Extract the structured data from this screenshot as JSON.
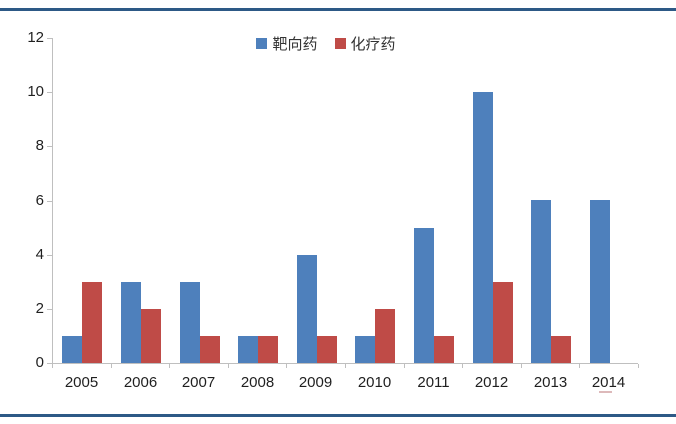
{
  "chart_data": {
    "type": "bar",
    "categories": [
      "2005",
      "2006",
      "2007",
      "2008",
      "2009",
      "2010",
      "2011",
      "2012",
      "2013",
      "2014"
    ],
    "series": [
      {
        "name": "靶向药",
        "color": "#4E80BC",
        "values": [
          1,
          3,
          3,
          1,
          4,
          1,
          5,
          10,
          6,
          6
        ]
      },
      {
        "name": "化疗药",
        "color": "#BF4B47",
        "values": [
          3,
          2,
          1,
          1,
          1,
          2,
          1,
          3,
          1,
          0
        ]
      }
    ],
    "title": "",
    "xlabel": "",
    "ylabel": "",
    "ylim": [
      0,
      12
    ],
    "yticks": [
      0,
      2,
      4,
      6,
      8,
      10,
      12
    ],
    "grid": false,
    "legend_position": "top-center"
  },
  "decor": {
    "rule_color": "#2D5986",
    "axis_color": "#BFBFBF",
    "text_color": "#1F1F1F",
    "artifact_color": "#DDB9BA"
  }
}
